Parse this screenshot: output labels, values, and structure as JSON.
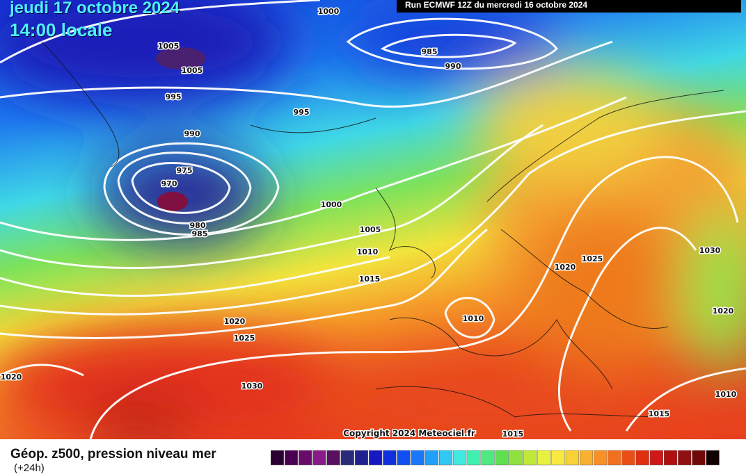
{
  "header": {
    "date": "jeudi 17 octobre 2024",
    "time": "14:00 locale",
    "run": "Run ECMWF 12Z du mercredi 16 octobre 2024"
  },
  "isobar_labels": [
    1000,
    1005,
    1005,
    985,
    990,
    995,
    995,
    990,
    975,
    970,
    980,
    985,
    1000,
    1005,
    1010,
    1015,
    1020,
    1025,
    1030,
    1020,
    1020,
    1025,
    1010,
    1030,
    1020,
    1010,
    1015,
    1015
  ],
  "copyright": "Copyright 2024 Meteociel.fr",
  "legend": {
    "title": "Géop. z500, pression niveau mer",
    "step": "(+24h)"
  }
}
